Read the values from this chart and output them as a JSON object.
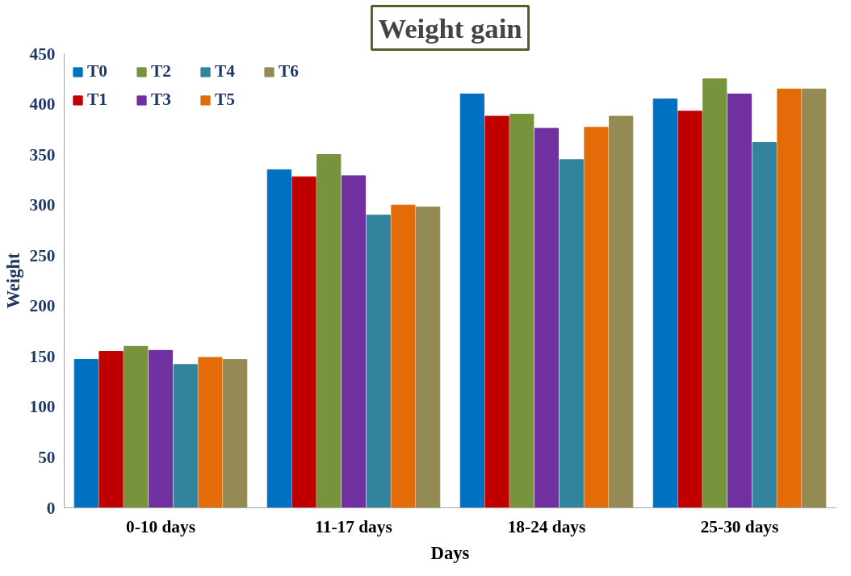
{
  "chart_data": {
    "type": "bar",
    "title": "Weight gain",
    "xlabel": "Days",
    "ylabel": "Weight",
    "categories": [
      "0-10 days",
      "11-17 days",
      "18-24 days",
      "25-30 days"
    ],
    "series": [
      {
        "name": "T0",
        "color": "#0070c0",
        "values": [
          147,
          335,
          410,
          405
        ]
      },
      {
        "name": "T1",
        "color": "#c00000",
        "values": [
          155,
          328,
          388,
          393
        ]
      },
      {
        "name": "T2",
        "color": "#77933c",
        "values": [
          160,
          350,
          390,
          425
        ]
      },
      {
        "name": "T3",
        "color": "#7030a0",
        "values": [
          156,
          329,
          376,
          410
        ]
      },
      {
        "name": "T4",
        "color": "#31849b",
        "values": [
          142,
          290,
          345,
          362
        ]
      },
      {
        "name": "T5",
        "color": "#e36c09",
        "values": [
          149,
          300,
          377,
          415
        ]
      },
      {
        "name": "T6",
        "color": "#948a54",
        "values": [
          147,
          298,
          388,
          415
        ]
      }
    ],
    "ylim": [
      0,
      450
    ],
    "yticks": [
      0,
      50,
      100,
      150,
      200,
      250,
      300,
      350,
      400,
      450
    ],
    "grid": false,
    "legend": "top left"
  }
}
